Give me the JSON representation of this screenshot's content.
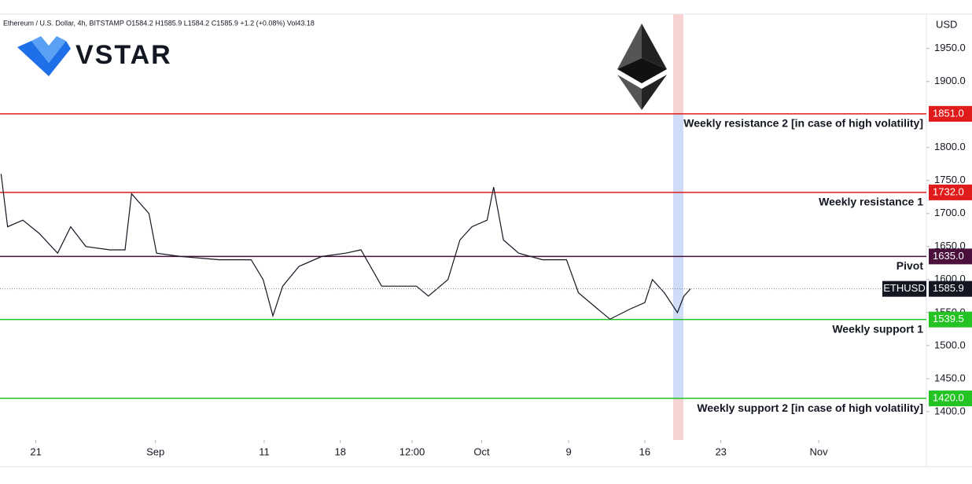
{
  "chart_data": {
    "type": "line",
    "legend_text": "Ethereum / U.S. Dollar, 4h, BITSTAMP  O1584.2 H1585.9 L1584.2 C1585.9 +1.2 (+0.08%) Vol43.18",
    "brand": "VSTAR",
    "y_unit": "USD",
    "x": [
      -3.2,
      -2.6,
      -1.2,
      0.3,
      2.0,
      3.2,
      4.6,
      6.8,
      8.2,
      8.8,
      10.4,
      11.1,
      13.3,
      16.9,
      19.8,
      20.9,
      21.8,
      22.7,
      24.2,
      26.3,
      28.5,
      29.9,
      31.8,
      35.0,
      36.1,
      37.9,
      39.0,
      40.1,
      41.5,
      42.1,
      43.0,
      44.4,
      46.6,
      48.8,
      49.9,
      51.7,
      52.8,
      54.6,
      56.0,
      56.7,
      57.8,
      59.0,
      59.6,
      60.2
    ],
    "series": [
      {
        "name": "ETHUSD",
        "color": "#131722",
        "value_label": "1585.9",
        "values": [
          1760,
          1680,
          1690,
          1670,
          1640,
          1680,
          1650,
          1645,
          1645,
          1730,
          1700,
          1640,
          1635,
          1630,
          1630,
          1600,
          1545,
          1590,
          1620,
          1635,
          1640,
          1645,
          1590,
          1590,
          1575,
          1600,
          1660,
          1680,
          1690,
          1740,
          1660,
          1640,
          1630,
          1630,
          1580,
          1555,
          1540,
          1555,
          1565,
          1600,
          1580,
          1550,
          1575,
          1585.9
        ]
      }
    ],
    "levels": [
      {
        "name": "Weekly resistance 2 [in case of high volatility]",
        "value": 1851,
        "value_label": "1851.0",
        "color": "#e01b1b"
      },
      {
        "name": "Weekly resistance 1",
        "value": 1732,
        "value_label": "1732.0",
        "color": "#e01b1b"
      },
      {
        "name": "Pivot",
        "value": 1635,
        "value_label": "1635.0",
        "color": "#4a0f3a"
      },
      {
        "name": "Weekly support 1",
        "value": 1539.5,
        "value_label": "1539.5",
        "color": "#22c322"
      },
      {
        "name": "Weekly support 2 [in case of high volatility]",
        "value": 1420,
        "value_label": "1420.0",
        "color": "#22c322"
      }
    ],
    "xlim": [
      -3.3,
      81.9
    ],
    "ylim": [
      1357,
      2002
    ],
    "xticks": [
      {
        "value": 0,
        "label": "21"
      },
      {
        "value": 11,
        "label": "Sep"
      },
      {
        "value": 21,
        "label": "11"
      },
      {
        "value": 28,
        "label": "18"
      },
      {
        "value": 34.6,
        "label": "12:00"
      },
      {
        "value": 41,
        "label": "Oct"
      },
      {
        "value": 49,
        "label": "9"
      },
      {
        "value": 56,
        "label": "16"
      },
      {
        "value": 63,
        "label": "23"
      },
      {
        "value": 72,
        "label": "Nov"
      }
    ],
    "yticks": [
      {
        "value": 1400,
        "label": "1400.0"
      },
      {
        "value": 1450,
        "label": "1450.0"
      },
      {
        "value": 1500,
        "label": "1500.0"
      },
      {
        "value": 1550,
        "label": "1550.0"
      },
      {
        "value": 1600,
        "label": "1600.0"
      },
      {
        "value": 1650,
        "label": "1650.0"
      },
      {
        "value": 1700,
        "label": "1700.0"
      },
      {
        "value": 1750,
        "label": "1750.0"
      },
      {
        "value": 1800,
        "label": "1800.0"
      },
      {
        "value": 1900,
        "label": "1900.0"
      },
      {
        "value": 1950,
        "label": "1950.0"
      }
    ],
    "grid": false
  }
}
